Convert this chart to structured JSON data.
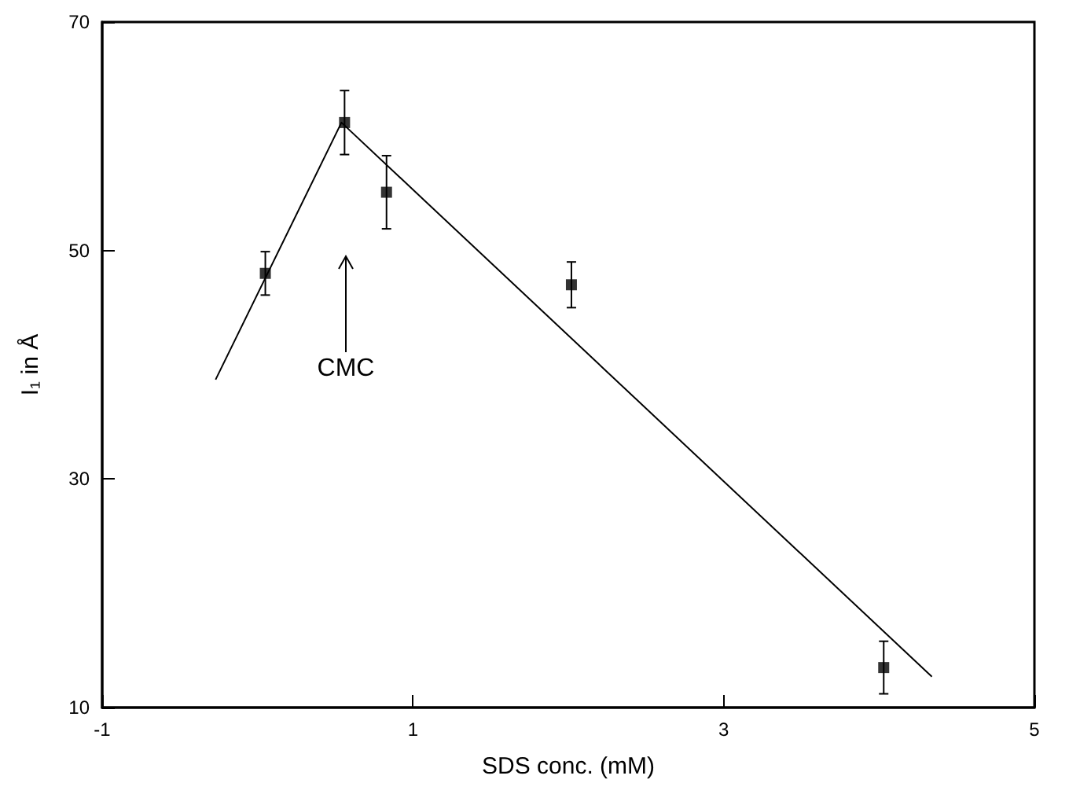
{
  "chart_data": {
    "type": "scatter",
    "xlabel": "SDS conc. (mM)",
    "ylabel": "I₁ in Å",
    "xlim": [
      -1,
      5
    ],
    "xticks": [
      -1,
      1,
      3,
      5
    ],
    "ylim": [
      10,
      70
    ],
    "yticks": [
      10,
      30,
      50,
      70
    ],
    "grid": false,
    "marker": "square",
    "series": [
      {
        "color": "#000000",
        "x": [
          0.05,
          0.56,
          0.83,
          2.02,
          4.03
        ],
        "values": [
          48.0,
          61.2,
          55.1,
          47.0,
          13.5
        ],
        "errors": [
          1.9,
          2.8,
          3.2,
          2.0,
          2.3
        ]
      },
      {
        "type": "line",
        "color": "#000000",
        "marker": "none",
        "line_style": "solid",
        "x": [
          -0.27,
          0.54,
          4.34
        ],
        "values": [
          38.7,
          61.2,
          12.7
        ]
      }
    ],
    "annotations": [
      "CMC"
    ]
  }
}
